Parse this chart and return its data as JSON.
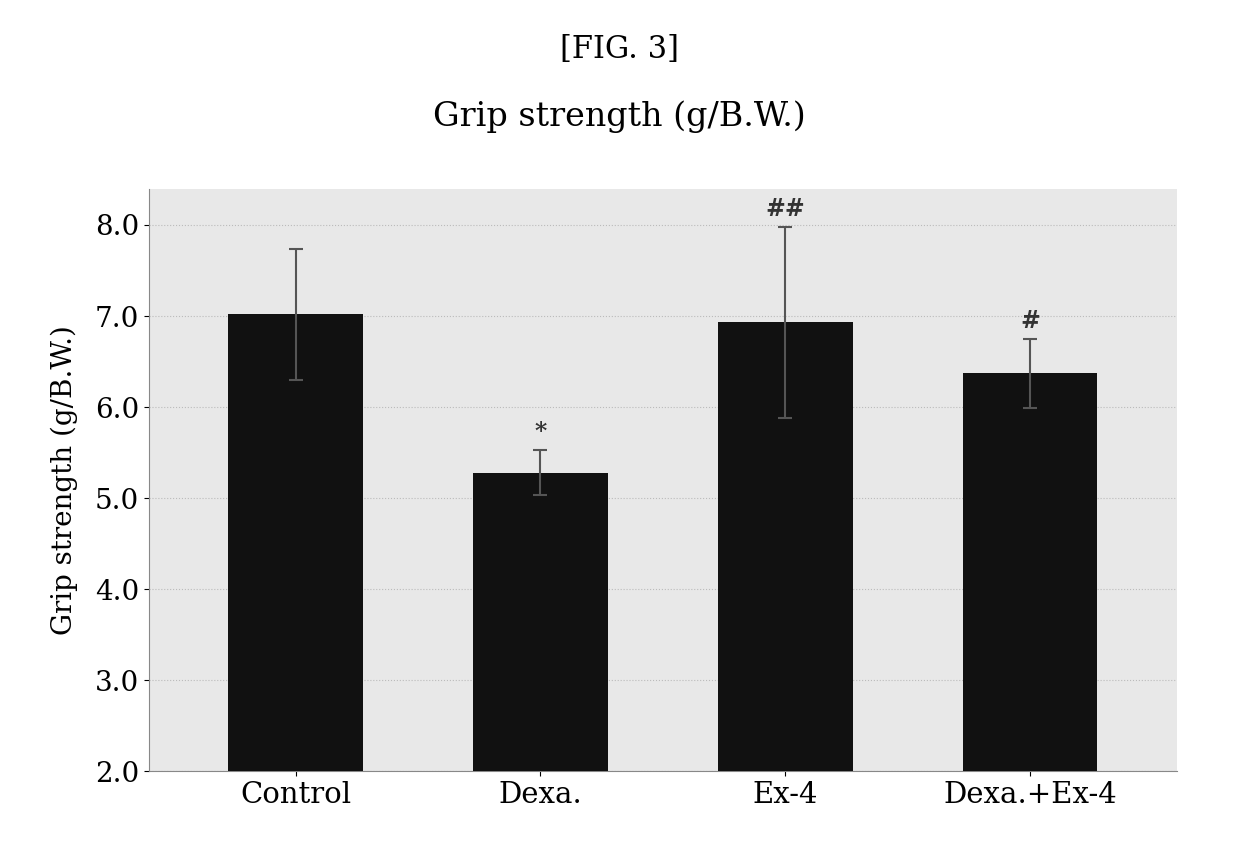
{
  "title_top": "[FIG. 3]",
  "title_main": "Grip strength (g/B.W.)",
  "ylabel": "Grip strength (g/B.W.)",
  "categories": [
    "Control",
    "Dexa.",
    "Ex-4",
    "Dexa.+Ex-4"
  ],
  "values": [
    7.02,
    5.28,
    6.93,
    6.37
  ],
  "errors": [
    0.72,
    0.25,
    1.05,
    0.38
  ],
  "bar_color": "#111111",
  "bar_width": 0.55,
  "ylim": [
    2.0,
    8.4
  ],
  "yticks": [
    2.0,
    3.0,
    4.0,
    5.0,
    6.0,
    7.0,
    8.0
  ],
  "grid_color": "#bbbbbb",
  "figure_bg": "#ffffff",
  "axes_bg": "#e8e8e8",
  "annotation_texts": [
    "",
    "*",
    "##",
    "#"
  ],
  "fig_width": 12.39,
  "fig_height": 8.57,
  "dpi": 100
}
